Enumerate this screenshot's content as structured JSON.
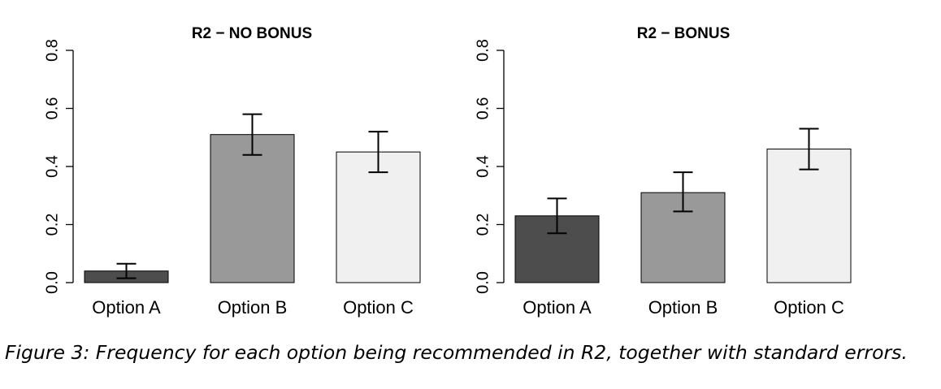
{
  "caption": "Figure 3: Frequency for each option being recommended in R2, together with standard errors.",
  "chart_data": [
    {
      "type": "bar",
      "title": "R2 − NO BONUS",
      "xlabel": "",
      "ylabel": "",
      "categories": [
        "Option A",
        "Option B",
        "Option C"
      ],
      "values": [
        0.04,
        0.51,
        0.45
      ],
      "error_low": [
        0.015,
        0.44,
        0.38
      ],
      "error_high": [
        0.065,
        0.58,
        0.52
      ],
      "bar_colors": [
        "#4d4d4d",
        "#999999",
        "#f0f0f0"
      ],
      "ylim": [
        0,
        0.8
      ],
      "yticks": [
        "0.0",
        "0.2",
        "0.4",
        "0.6",
        "0.8"
      ],
      "grid": false
    },
    {
      "type": "bar",
      "title": "R2 − BONUS",
      "xlabel": "",
      "ylabel": "",
      "categories": [
        "Option A",
        "Option B",
        "Option C"
      ],
      "values": [
        0.23,
        0.31,
        0.46
      ],
      "error_low": [
        0.17,
        0.245,
        0.39
      ],
      "error_high": [
        0.29,
        0.38,
        0.53
      ],
      "bar_colors": [
        "#4d4d4d",
        "#999999",
        "#f0f0f0"
      ],
      "ylim": [
        0,
        0.8
      ],
      "yticks": [
        "0.0",
        "0.2",
        "0.4",
        "0.6",
        "0.8"
      ],
      "grid": false
    }
  ]
}
